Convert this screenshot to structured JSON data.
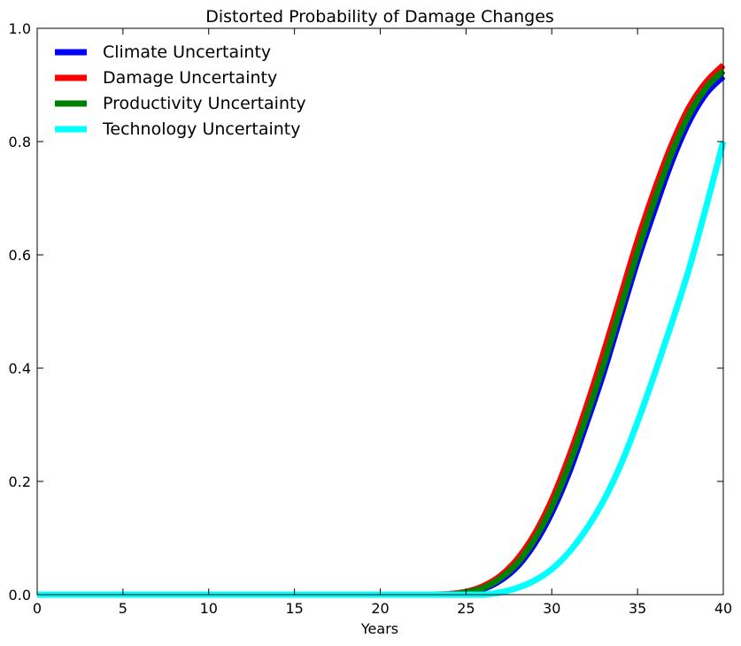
{
  "chart_data": {
    "type": "line",
    "title": "Distorted Probability of Damage Changes",
    "xlabel": "Years",
    "ylabel": "",
    "xlim": [
      0,
      40
    ],
    "ylim": [
      0,
      1.0
    ],
    "xticks": [
      "0",
      "5",
      "10",
      "15",
      "20",
      "25",
      "30",
      "35",
      "40"
    ],
    "yticks": [
      "0.0",
      "0.2",
      "0.4",
      "0.6",
      "0.8",
      "1.0"
    ],
    "grid": false,
    "legend_position": "top-left",
    "x": [
      0,
      5,
      10,
      15,
      20,
      23,
      24,
      25,
      26,
      27,
      28,
      29,
      30,
      31,
      32,
      33,
      34,
      35,
      36,
      37,
      38,
      39,
      40
    ],
    "series": [
      {
        "name": "Climate Uncertainty",
        "color": "#0000ff",
        "values": [
          0,
          0,
          0,
          0,
          0,
          0.0,
          0.0,
          0.003,
          0.01,
          0.025,
          0.05,
          0.09,
          0.145,
          0.215,
          0.3,
          0.39,
          0.49,
          0.59,
          0.68,
          0.765,
          0.835,
          0.885,
          0.915
        ]
      },
      {
        "name": "Damage Uncertainty",
        "color": "#ff0000",
        "values": [
          0,
          0,
          0,
          0,
          0,
          0.0,
          0.001,
          0.005,
          0.015,
          0.033,
          0.063,
          0.107,
          0.167,
          0.243,
          0.33,
          0.425,
          0.525,
          0.625,
          0.715,
          0.795,
          0.86,
          0.905,
          0.935
        ]
      },
      {
        "name": "Productivity Uncertainty",
        "color": "#008000",
        "values": [
          0,
          0,
          0,
          0,
          0,
          0.0,
          0.0,
          0.004,
          0.012,
          0.029,
          0.056,
          0.098,
          0.155,
          0.228,
          0.313,
          0.405,
          0.505,
          0.605,
          0.697,
          0.78,
          0.847,
          0.895,
          0.925
        ]
      },
      {
        "name": "Technology Uncertainty",
        "color": "#00ffff",
        "values": [
          0,
          0,
          0,
          0,
          0,
          0.0,
          0.0,
          0.0,
          0.0,
          0.004,
          0.012,
          0.025,
          0.045,
          0.075,
          0.115,
          0.165,
          0.228,
          0.305,
          0.39,
          0.48,
          0.575,
          0.685,
          0.8
        ]
      }
    ]
  }
}
